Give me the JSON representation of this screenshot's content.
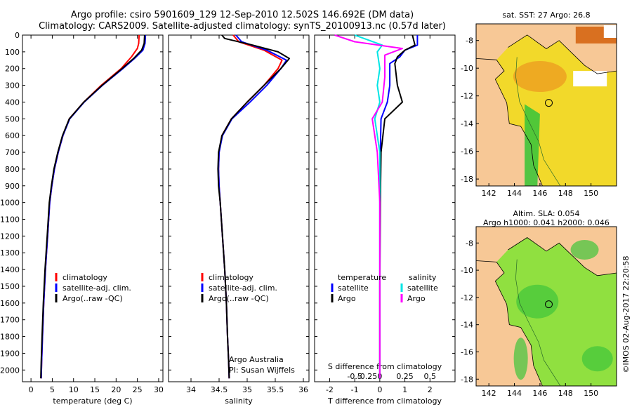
{
  "title_line1": "Argo profile: csiro 5901609_129 12-Sep-2010 12.502S 146.692E (DM data)",
  "title_line2": "Climatology: CARS2009. Satellite-adjusted climatology: synTS_20100913.nc (0.57d later)",
  "depth_ticks": [
    0,
    100,
    200,
    300,
    400,
    500,
    600,
    700,
    800,
    900,
    1000,
    1100,
    1200,
    1300,
    1400,
    1500,
    1600,
    1700,
    1800,
    1900,
    2000
  ],
  "panels": [
    {
      "id": "temperature",
      "type": "line",
      "xlabel": "temperature (deg C)",
      "xlim": [
        -2,
        31
      ],
      "xticks": [
        0,
        5,
        10,
        15,
        20,
        25,
        30
      ],
      "xtick_labels": [
        "0",
        "5",
        "10",
        "15",
        "20",
        "25",
        "30"
      ],
      "ylim": [
        0,
        2070
      ],
      "legend": [
        "climatology",
        "satellite-adj. clim.",
        "Argo(..raw -QC)"
      ],
      "series": [
        {
          "name": "climatology",
          "color": "#ff0000",
          "points": [
            [
              25.4,
              0
            ],
            [
              25.3,
              50
            ],
            [
              25.0,
              80
            ],
            [
              23.6,
              130
            ],
            [
              21.2,
              200
            ],
            [
              16.5,
              300
            ],
            [
              12.4,
              400
            ],
            [
              9.0,
              500
            ],
            [
              7.5,
              600
            ],
            [
              6.4,
              700
            ],
            [
              5.5,
              800
            ],
            [
              4.9,
              900
            ],
            [
              4.4,
              1000
            ],
            [
              3.9,
              1200
            ],
            [
              3.4,
              1400
            ],
            [
              3.0,
              1600
            ],
            [
              2.7,
              1800
            ],
            [
              2.5,
              1950
            ],
            [
              2.4,
              2050
            ]
          ]
        },
        {
          "name": "satellite-adj. clim.",
          "color": "#0000ff",
          "points": [
            [
              26.9,
              0
            ],
            [
              26.8,
              50
            ],
            [
              26.3,
              90
            ],
            [
              24.3,
              140
            ],
            [
              21.6,
              200
            ],
            [
              16.8,
              300
            ],
            [
              12.5,
              400
            ],
            [
              9.1,
              500
            ],
            [
              7.5,
              600
            ],
            [
              6.4,
              700
            ],
            [
              5.5,
              800
            ],
            [
              4.9,
              900
            ],
            [
              4.4,
              1000
            ],
            [
              3.9,
              1200
            ],
            [
              3.4,
              1400
            ],
            [
              3.0,
              1600
            ],
            [
              2.7,
              1800
            ],
            [
              2.5,
              1950
            ],
            [
              2.4,
              2050
            ]
          ]
        },
        {
          "name": "Argo(..raw -QC)",
          "color": "#000000",
          "points": [
            [
              26.7,
              0
            ],
            [
              26.6,
              50
            ],
            [
              26.0,
              90
            ],
            [
              24.1,
              140
            ],
            [
              21.4,
              200
            ],
            [
              16.7,
              300
            ],
            [
              12.4,
              400
            ],
            [
              9.0,
              500
            ],
            [
              7.4,
              600
            ],
            [
              6.3,
              700
            ],
            [
              5.4,
              800
            ],
            [
              4.8,
              900
            ],
            [
              4.3,
              1000
            ],
            [
              3.8,
              1200
            ],
            [
              3.3,
              1400
            ],
            [
              2.9,
              1600
            ],
            [
              2.6,
              1800
            ],
            [
              2.4,
              1950
            ],
            [
              2.3,
              2050
            ]
          ]
        }
      ]
    },
    {
      "id": "salinity",
      "type": "line",
      "xlabel": "salinity",
      "xlim": [
        33.6,
        36.1
      ],
      "xticks": [
        34,
        34.5,
        35,
        35.5,
        36
      ],
      "xtick_labels": [
        "34",
        "34.5",
        "35",
        "35.5",
        "36"
      ],
      "ylim": [
        0,
        2070
      ],
      "legend": [
        "climatology",
        "satellite-adj. clim.",
        "Argo(..raw -QC)"
      ],
      "series": [
        {
          "name": "climatology",
          "color": "#ff0000",
          "points": [
            [
              34.75,
              0
            ],
            [
              34.85,
              40
            ],
            [
              35.3,
              90
            ],
            [
              35.62,
              150
            ],
            [
              35.55,
              200
            ],
            [
              35.3,
              300
            ],
            [
              35.0,
              400
            ],
            [
              34.72,
              500
            ],
            [
              34.55,
              600
            ],
            [
              34.5,
              700
            ],
            [
              34.49,
              800
            ],
            [
              34.5,
              900
            ],
            [
              34.52,
              1000
            ],
            [
              34.56,
              1200
            ],
            [
              34.6,
              1400
            ],
            [
              34.63,
              1600
            ],
            [
              34.65,
              1800
            ],
            [
              34.67,
              1950
            ],
            [
              34.68,
              2050
            ]
          ]
        },
        {
          "name": "satellite-adj. clim.",
          "color": "#0000ff",
          "points": [
            [
              34.8,
              0
            ],
            [
              34.9,
              40
            ],
            [
              35.35,
              90
            ],
            [
              35.7,
              150
            ],
            [
              35.6,
              200
            ],
            [
              35.35,
              300
            ],
            [
              35.05,
              400
            ],
            [
              34.73,
              500
            ],
            [
              34.56,
              600
            ],
            [
              34.5,
              700
            ],
            [
              34.49,
              800
            ],
            [
              34.5,
              900
            ],
            [
              34.52,
              1000
            ],
            [
              34.56,
              1200
            ],
            [
              34.6,
              1400
            ],
            [
              34.63,
              1600
            ],
            [
              34.65,
              1800
            ],
            [
              34.67,
              1950
            ],
            [
              34.68,
              2050
            ]
          ]
        },
        {
          "name": "Argo(..raw -QC)",
          "color": "#000000",
          "points": [
            [
              34.55,
              0
            ],
            [
              34.6,
              20
            ],
            [
              35.1,
              60
            ],
            [
              35.55,
              100
            ],
            [
              35.75,
              140
            ],
            [
              35.6,
              200
            ],
            [
              35.3,
              300
            ],
            [
              35.0,
              400
            ],
            [
              34.72,
              500
            ],
            [
              34.55,
              600
            ],
            [
              34.49,
              700
            ],
            [
              34.48,
              800
            ],
            [
              34.49,
              900
            ],
            [
              34.52,
              1000
            ],
            [
              34.56,
              1200
            ],
            [
              34.6,
              1400
            ],
            [
              34.63,
              1600
            ],
            [
              34.65,
              1800
            ],
            [
              34.67,
              1950
            ],
            [
              34.68,
              2050
            ]
          ]
        }
      ]
    },
    {
      "id": "difference",
      "type": "line",
      "xlabel": "T difference from climatology",
      "xlabel_top": "S difference from climatology",
      "xlim": [
        -2.6,
        3.0
      ],
      "xticks": [
        -2,
        -1,
        0,
        1,
        2
      ],
      "xtick_labels": [
        "-2",
        "-1",
        "0",
        "1",
        "2"
      ],
      "xticks_top": [
        -1,
        -0.5,
        0,
        1,
        2
      ],
      "xtick_labels_top": [
        "-0.5",
        "-0.25",
        "0",
        "0.25",
        "0.5"
      ],
      "ylim": [
        0,
        2070
      ],
      "legend": {
        "col1_title": "temperature",
        "col2_title": "salinity",
        "col1": [
          "satellite",
          "Argo"
        ],
        "col2": [
          "satellite",
          "Argo"
        ]
      },
      "series": [
        {
          "name": "temperature satellite",
          "color": "#0000ff",
          "points": [
            [
              1.5,
              0
            ],
            [
              1.5,
              60
            ],
            [
              1.0,
              90
            ],
            [
              0.8,
              130
            ],
            [
              0.4,
              170
            ],
            [
              0.4,
              300
            ],
            [
              0.3,
              400
            ],
            [
              0.05,
              500
            ],
            [
              0.02,
              700
            ],
            [
              0.0,
              1000
            ],
            [
              0.0,
              1500
            ],
            [
              0.0,
              2050
            ]
          ]
        },
        {
          "name": "temperature Argo",
          "color": "#000000",
          "points": [
            [
              1.3,
              0
            ],
            [
              1.4,
              60
            ],
            [
              1.0,
              90
            ],
            [
              0.7,
              130
            ],
            [
              0.6,
              170
            ],
            [
              0.7,
              300
            ],
            [
              0.9,
              400
            ],
            [
              0.2,
              500
            ],
            [
              0.05,
              700
            ],
            [
              0.02,
              1000
            ],
            [
              0.0,
              1500
            ],
            [
              0.0,
              2050
            ]
          ]
        },
        {
          "name": "salinity satellite",
          "color": "#00e5e5",
          "points": [
            [
              -1.0,
              0
            ],
            [
              0.1,
              60
            ],
            [
              -0.1,
              100
            ],
            [
              0.0,
              200
            ],
            [
              -0.1,
              300
            ],
            [
              0.0,
              400
            ],
            [
              -0.2,
              500
            ],
            [
              0.0,
              700
            ],
            [
              0.0,
              1000
            ],
            [
              0.0,
              2050
            ]
          ]
        },
        {
          "name": "salinity Argo",
          "color": "#ff00ff",
          "points": [
            [
              -1.8,
              0
            ],
            [
              -1.0,
              40
            ],
            [
              0.9,
              80
            ],
            [
              0.2,
              120
            ],
            [
              0.2,
              250
            ],
            [
              0.1,
              400
            ],
            [
              -0.3,
              500
            ],
            [
              -0.1,
              700
            ],
            [
              0.0,
              1000
            ],
            [
              0.0,
              2050
            ]
          ]
        }
      ]
    }
  ],
  "panel_labels": {
    "line1": "Argo Australia",
    "line2": "PI: Susan Wijffels"
  },
  "maps": [
    {
      "title": "sat. SST: 27 Argo: 26.8",
      "title2": ""
    },
    {
      "title": "Altim. SLA: 0.054",
      "title2": "Argo h1000: 0.041 h2000: 0.046"
    }
  ],
  "map_xlim": [
    141,
    152
  ],
  "map_ylim": [
    -18.5,
    -6.8
  ],
  "map_xticks": [
    142,
    144,
    146,
    148,
    150
  ],
  "map_yticks": [
    -8,
    -10,
    -12,
    -14,
    -16,
    -18
  ],
  "profile_location": {
    "lon": 146.692,
    "lat": -12.502
  },
  "map_colors": {
    "land": "#f7c896",
    "sst_main": "#f2d92a",
    "sst_warm": "#ec9a20",
    "sla_main": "#90e040",
    "sla_dark": "#3fc43a"
  },
  "credit": "©IMOS 02-Aug-2017 22:20:58"
}
